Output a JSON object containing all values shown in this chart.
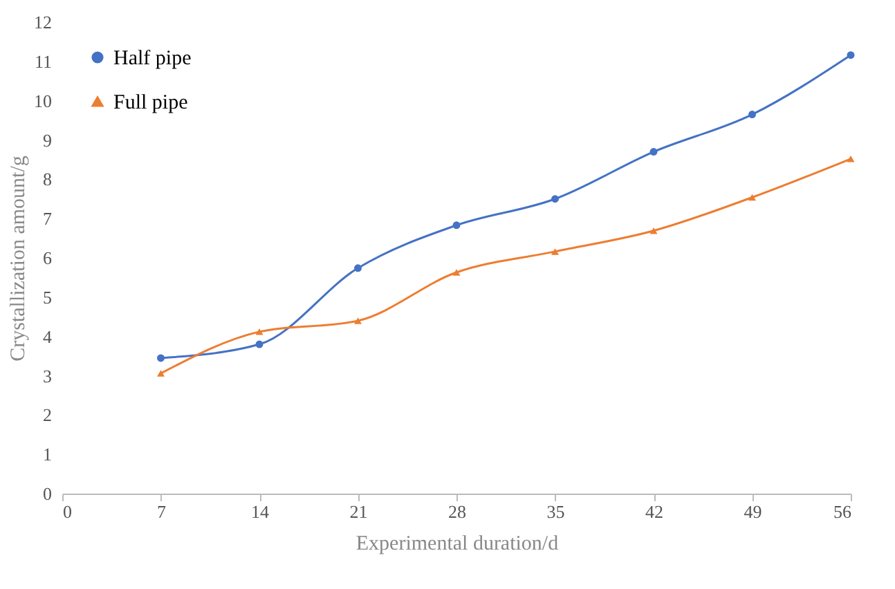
{
  "chart_data": {
    "type": "line",
    "xlabel": "Experimental duration/d",
    "ylabel": "Crystallization amount/g",
    "x": [
      7,
      14,
      21,
      28,
      35,
      42,
      49,
      56
    ],
    "xlim": [
      0,
      56
    ],
    "xticks": [
      0,
      7,
      14,
      21,
      28,
      35,
      42,
      49,
      56
    ],
    "ylim": [
      0,
      12
    ],
    "yticks": [
      0,
      1,
      2,
      3,
      4,
      5,
      6,
      7,
      8,
      9,
      10,
      11,
      12
    ],
    "grid": false,
    "legend": "top left",
    "line_style": "solid",
    "series": [
      {
        "name": "Half pipe",
        "color": "#4472c4",
        "marker": "circle",
        "values": [
          3.45,
          3.8,
          5.74,
          6.83,
          7.5,
          8.7,
          9.65,
          11.16
        ]
      },
      {
        "name": "Full pipe",
        "color": "#ed7d31",
        "marker": "triangle",
        "values": [
          3.06,
          4.12,
          4.4,
          5.63,
          6.16,
          6.69,
          7.54,
          8.52
        ]
      }
    ]
  }
}
